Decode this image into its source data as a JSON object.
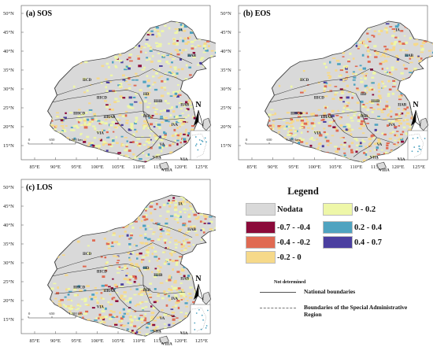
{
  "panels": [
    {
      "label": "(a) SOS"
    },
    {
      "label": "(b) EOS"
    },
    {
      "label": "(c) LOS"
    }
  ],
  "lon_ticks": [
    "85°E",
    "90°E",
    "95°E",
    "100°E",
    "105°E",
    "110°E",
    "115°E",
    "120°E",
    "125°E"
  ],
  "lat_ticks": [
    "50°N",
    "45°N",
    "40°N",
    "35°N",
    "30°N",
    "25°N",
    "20°N",
    "15°N"
  ],
  "scalebar": [
    "0",
    "650",
    "1,300 km"
  ],
  "north_label": "N",
  "regions": [
    "IA",
    "IIAB",
    "IICD",
    "IIIB",
    "IIICD",
    "IIIA",
    "IID",
    "IIHB",
    "IIICD",
    "IIHCD",
    "IIIAB",
    "IVA",
    "VA",
    "VIA",
    "VIIA",
    "VIIIA"
  ],
  "legend": {
    "title": "Legend",
    "items": [
      {
        "label": "Nodata",
        "color": "#d9d9d9"
      },
      {
        "label": "-0.7 - -0.4",
        "color": "#8b0a3a"
      },
      {
        "label": "-0.4 - -0.2",
        "color": "#e06a52"
      },
      {
        "label": "-0.2 - 0",
        "color": "#f6d98a"
      },
      {
        "label": "0 - 0.2",
        "color": "#eef7a8"
      },
      {
        "label": "0.2 - 0.4",
        "color": "#4fa3c0"
      },
      {
        "label": "0.4 - 0.7",
        "color": "#4b3fa0"
      }
    ],
    "not_determined": "Not determined",
    "national_boundaries": "National boundaries",
    "special_boundaries": "Boundaries of the Special Administrative Region"
  }
}
